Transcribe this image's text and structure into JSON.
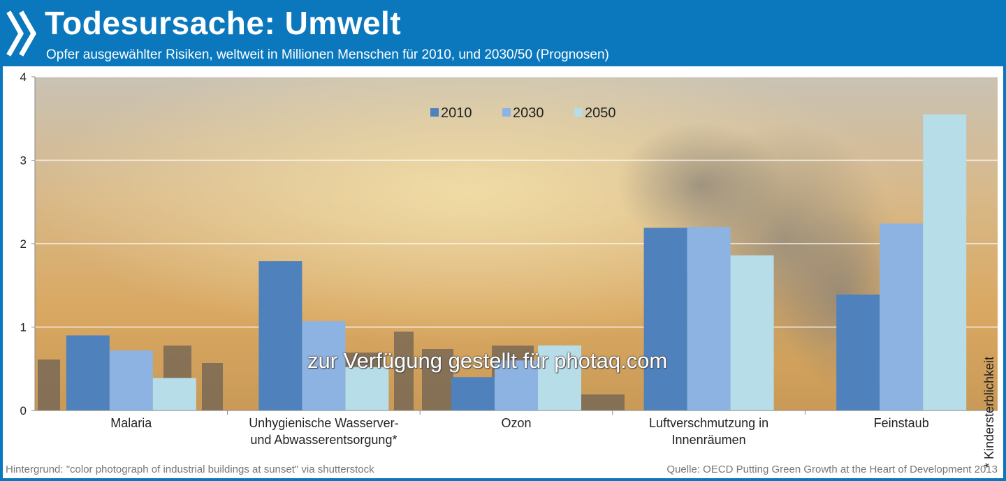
{
  "header": {
    "title": "Todesursache: Umwelt",
    "subtitle": "Opfer ausgewählter Risiken, weltweit in Millionen Menschen für 2010, und 2030/50 (Prognosen)"
  },
  "footer": {
    "left": "Hintergrund: \"color photograph of industrial buildings at sunset\" via shutterstock",
    "right": "Quelle: OECD Putting Green Growth at the Heart of Development 2013"
  },
  "watermark": "zur Verfügung gestellt für photaq.com",
  "sidenote": "* Kindersterblichkeit",
  "chart_data": {
    "type": "bar",
    "categories": [
      [
        "Malaria"
      ],
      [
        "Unhygienische Wasserver-",
        "und Abwasserentsorgung*"
      ],
      [
        "Ozon"
      ],
      [
        "Luftverschmutzung in",
        "Innenräumen"
      ],
      [
        "Feinstaub"
      ]
    ],
    "series": [
      {
        "name": "2010",
        "color": "#4f81bd",
        "values": [
          0.9,
          1.79,
          0.4,
          2.19,
          1.39
        ]
      },
      {
        "name": "2030",
        "color": "#8db3e2",
        "values": [
          0.72,
          1.07,
          0.6,
          2.2,
          2.24
        ]
      },
      {
        "name": "2050",
        "color": "#b7dde8",
        "values": [
          0.39,
          0.52,
          0.78,
          1.86,
          3.55
        ]
      }
    ],
    "ylim": [
      0,
      4
    ],
    "yticks": [
      0,
      1,
      2,
      3,
      4
    ],
    "grid": true,
    "legend": "top-center"
  }
}
